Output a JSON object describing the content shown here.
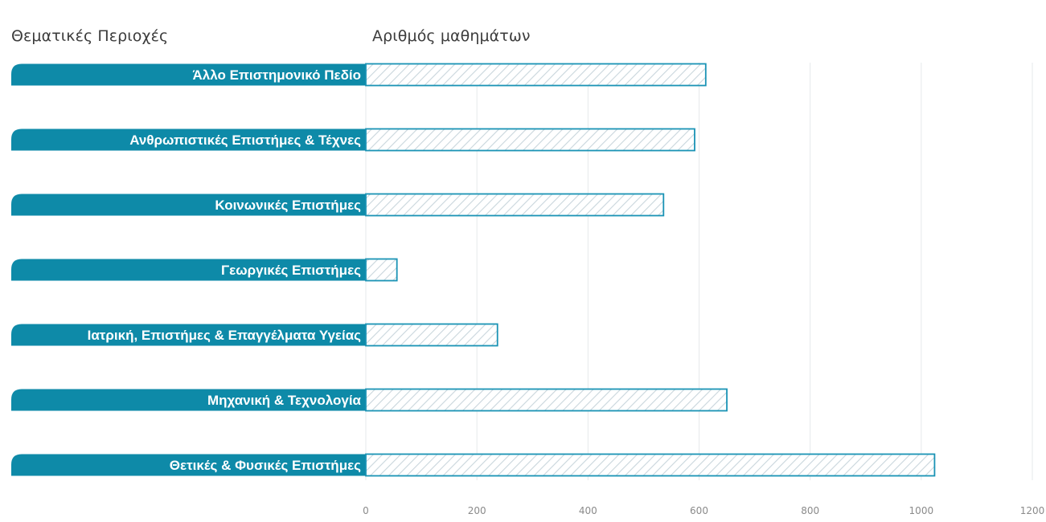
{
  "chart_data": {
    "type": "bar",
    "orientation": "horizontal",
    "category_header": "Θεματικές Περιοχές",
    "value_header": "Αριθμός μαθημάτων",
    "categories": [
      "Άλλο Επιστημονικό Πεδίο",
      "Ανθρωπιστικές Επιστήμες & Τέχνες",
      "Κοινωνικές Επιστήμες",
      "Γεωργικές Επιστήμες",
      "Ιατρική, Επιστήμες & Επαγγέλματα Υγείας",
      "Μηχανική & Τεχνολογία",
      "Θετικές & Φυσικές Επιστήμες"
    ],
    "values": [
      612,
      592,
      536,
      56,
      237,
      650,
      1024
    ],
    "xlim": [
      0,
      1200
    ],
    "xticks": [
      0,
      200,
      400,
      600,
      800,
      1000,
      1200
    ],
    "grid": true,
    "bar_fill": "hatched",
    "colors": {
      "label_band": "#0e8aa8",
      "bar_border": "#1a93b5",
      "hatch": "#c9d6dc",
      "grid": "#e6e9eb",
      "tick_text": "#8a8a8a",
      "header_text": "#3c3c3c"
    }
  }
}
